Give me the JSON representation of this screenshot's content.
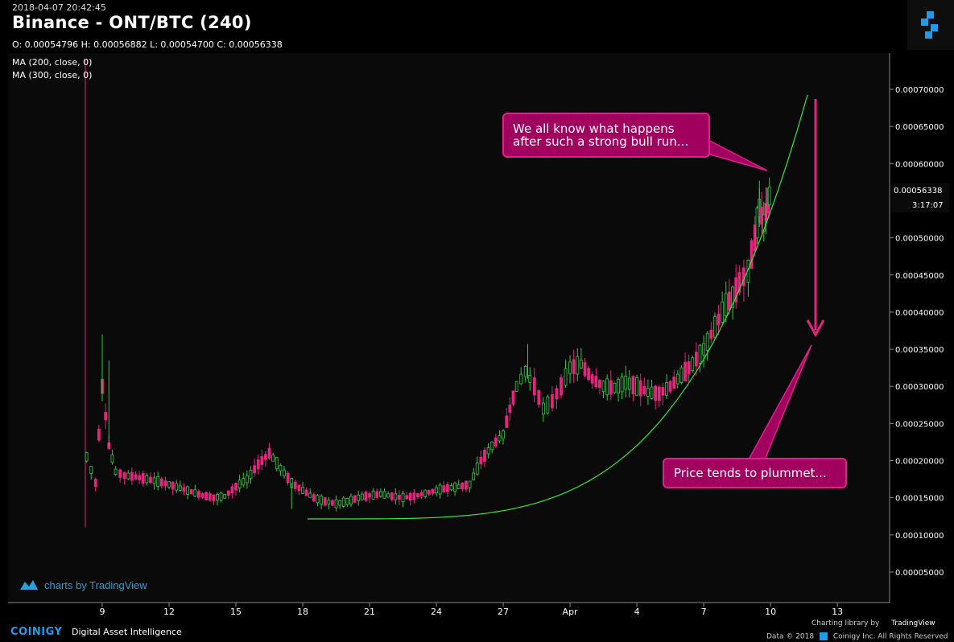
{
  "header": {
    "datetime": "2018-04-07 20:42:45",
    "title": "Binance - ONT/BTC (240)",
    "ohlc": "O: 0.00054796 H: 0.00056882 L: 0.00054700 C: 0.00056338"
  },
  "indicators": [
    "MA (200, close, 0)",
    "MA (300, close, 0)"
  ],
  "watermark": "charts by TradingView",
  "price_tag": {
    "value": "0.00056338",
    "timer": "3:17:07"
  },
  "annotations": {
    "top_callout": [
      "We all know what happens",
      "after such a strong bull run..."
    ],
    "bottom_callout": "Price tends to plummet..."
  },
  "footer": {
    "brand": "COINIGY",
    "tagline": "Digital Asset Intelligence",
    "charting": "Charting library by",
    "tradingview": "TradingView",
    "copyright": "Data © 2018",
    "copyright2": "Coinigy Inc. All Rights Reserved"
  },
  "colors": {
    "up": "#2ecc40",
    "down": "#e8237d",
    "arrow": "#e8237d",
    "curve": "#39e639",
    "bg": "#0a0a0a"
  },
  "chart_data": {
    "type": "candlestick",
    "x_ticks": [
      "9",
      "12",
      "15",
      "18",
      "21",
      "24",
      "27",
      "Apr",
      "4",
      "7",
      "10",
      "13"
    ],
    "y_ticks": [
      "0.00005000",
      "0.00010000",
      "0.00015000",
      "0.00020000",
      "0.00025000",
      "0.00030000",
      "0.00035000",
      "0.00040000",
      "0.00045000",
      "0.00050000",
      "0.00060000",
      "0.00065000",
      "0.00070000"
    ],
    "ylim": [
      0.0,
      0.00074
    ],
    "series": [
      {
        "name": "ONT/BTC",
        "type": "close_path",
        "points": [
          [
            8.3,
            0.000205
          ],
          [
            8.7,
            0.00017
          ],
          [
            9.0,
            0.0003
          ],
          [
            9.3,
            0.00022
          ],
          [
            9.6,
            0.000185
          ],
          [
            10,
            0.00018
          ],
          [
            10.5,
            0.000178
          ],
          [
            11,
            0.000175
          ],
          [
            11.5,
            0.000172
          ],
          [
            12,
            0.000168
          ],
          [
            12.5,
            0.000163
          ],
          [
            13,
            0.000158
          ],
          [
            13.5,
            0.000153
          ],
          [
            14,
            0.00015
          ],
          [
            14.5,
            0.000152
          ],
          [
            15,
            0.000165
          ],
          [
            15.5,
            0.000175
          ],
          [
            16,
            0.000195
          ],
          [
            16.5,
            0.00021
          ],
          [
            17,
            0.00019
          ],
          [
            17.5,
            0.00017
          ],
          [
            18,
            0.00016
          ],
          [
            18.5,
            0.00015
          ],
          [
            19,
            0.000145
          ],
          [
            19.5,
            0.000142
          ],
          [
            20,
            0.000145
          ],
          [
            20.5,
            0.00015
          ],
          [
            21,
            0.000153
          ],
          [
            21.5,
            0.000155
          ],
          [
            22,
            0.000152
          ],
          [
            22.5,
            0.00015
          ],
          [
            23,
            0.000152
          ],
          [
            23.5,
            0.000156
          ],
          [
            24,
            0.00016
          ],
          [
            24.5,
            0.000163
          ],
          [
            25,
            0.000165
          ],
          [
            25.5,
            0.000168
          ],
          [
            26,
            0.0002
          ],
          [
            26.5,
            0.00022
          ],
          [
            27,
            0.000235
          ],
          [
            27.3,
            0.00027
          ],
          [
            27.6,
            0.0003
          ],
          [
            28,
            0.00032
          ],
          [
            28.4,
            0.0003
          ],
          [
            28.8,
            0.00027
          ],
          [
            29.2,
            0.00028
          ],
          [
            29.6,
            0.0003
          ],
          [
            30,
            0.000325
          ],
          [
            30.5,
            0.00033
          ],
          [
            31,
            0.00031
          ],
          [
            31.5,
            0.0003
          ],
          [
            32,
            0.000298
          ],
          [
            32.5,
            0.000305
          ],
          [
            33,
            0.0003
          ],
          [
            33.5,
            0.000292
          ],
          [
            34,
            0.00029
          ],
          [
            34.5,
            0.0003
          ],
          [
            35,
            0.000315
          ],
          [
            35.5,
            0.00033
          ],
          [
            36,
            0.00035
          ],
          [
            36.5,
            0.00038
          ],
          [
            37,
            0.00041
          ],
          [
            37.3,
            0.00042
          ],
          [
            37.6,
            0.00044
          ],
          [
            38,
            0.000455
          ],
          [
            38.3,
            0.0005
          ],
          [
            38.5,
            0.00054
          ],
          [
            38.7,
            0.00052
          ],
          [
            38.9,
            0.00055
          ],
          [
            39,
            0.000563
          ]
        ]
      }
    ]
  }
}
